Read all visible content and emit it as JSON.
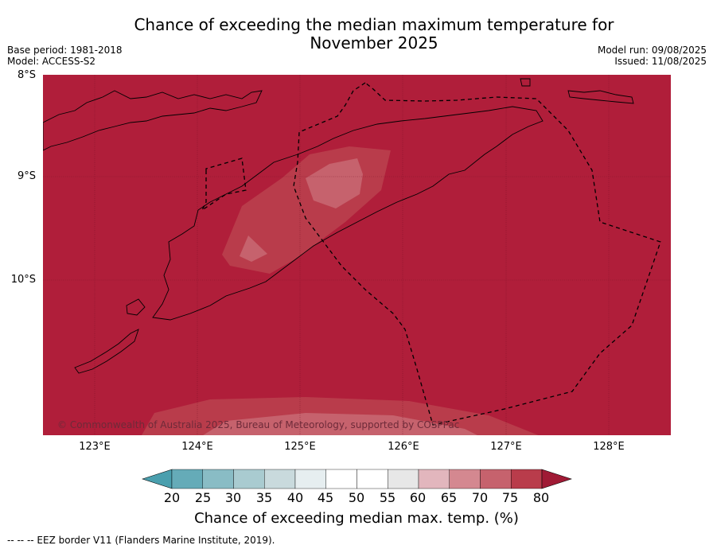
{
  "title_line1": "Chance of exceeding the median maximum temperature for",
  "title_line2": "November 2025",
  "meta_left": {
    "base_period": "Base period: 1981-2018",
    "model": "Model: ACCESS-S2"
  },
  "meta_right": {
    "model_run": "Model run: 09/08/2025",
    "issued": "Issued: 11/08/2025"
  },
  "map": {
    "lat_labels": [
      "8°S",
      "9°S",
      "10°S"
    ],
    "lon_labels": [
      "123°E",
      "124°E",
      "125°E",
      "126°E",
      "127°E",
      "128°E"
    ],
    "copyright": "© Commonwealth of Australia 2025, Bureau of Meteorology, supported by COSPPac"
  },
  "colorbar": {
    "ticks": [
      "20",
      "25",
      "30",
      "35",
      "40",
      "45",
      "50",
      "55",
      "60",
      "65",
      "70",
      "75",
      "80"
    ],
    "label": "Chance of exceeding median max. temp. (%)",
    "colors": [
      "#4a9fae",
      "#65abb8",
      "#89bcc5",
      "#a9cbd0",
      "#c9dadd",
      "#e6eef0",
      "#ffffff",
      "#ffffff",
      "#e7e7e7",
      "#e2b6bd",
      "#d48890",
      "#c6626d",
      "#b93c4b",
      "#a01a35"
    ]
  },
  "footer": "--  --  -- EEZ border V11 (Flanders Marine Institute, 2019)."
}
